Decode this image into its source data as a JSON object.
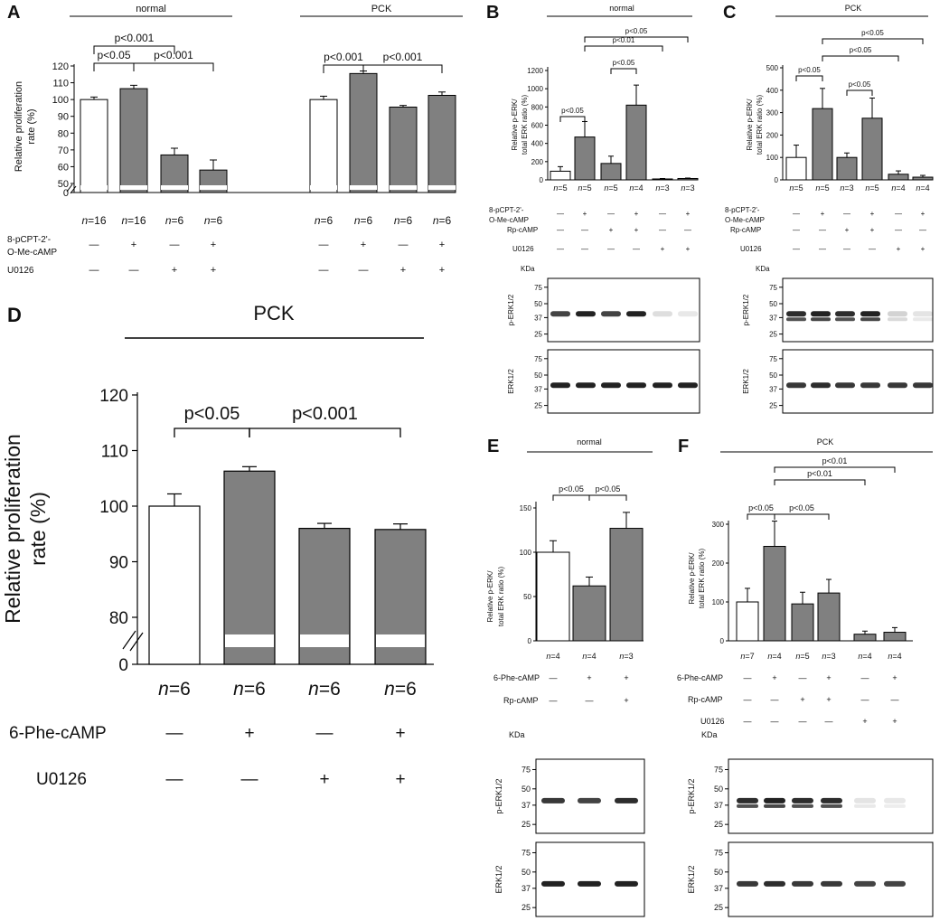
{
  "colors": {
    "white_bar": "#ffffff",
    "gray_bar": "#808080",
    "stroke": "#000000"
  },
  "chart_data": [
    {
      "panel": "A",
      "type": "bar",
      "ylabel": "Relative proliferation rate (%)",
      "ylim": [
        0,
        120
      ],
      "y_axis_break": true,
      "yticks": [
        0,
        50,
        60,
        70,
        80,
        90,
        100,
        110,
        120
      ],
      "groups": [
        {
          "label": "normal",
          "n": [
            "16",
            "16",
            "6",
            "6"
          ],
          "values": [
            100,
            106.5,
            67,
            58
          ],
          "errors": [
            1.5,
            2,
            4,
            6
          ],
          "brackets": [
            {
              "from": 0,
              "to": 1,
              "text": "p<0.05",
              "level": 0
            },
            {
              "from": 1,
              "to": 3,
              "text": "p<0.001",
              "level": 0
            },
            {
              "from": 0,
              "to": 2,
              "text": "p<0.001",
              "level": 1
            }
          ]
        },
        {
          "label": "PCK",
          "n": [
            "6",
            "6",
            "6",
            "6"
          ],
          "values": [
            100,
            115.5,
            95.5,
            102.5
          ],
          "errors": [
            2,
            1.5,
            1,
            2
          ],
          "brackets": [
            {
              "from": 0,
              "to": 1,
              "text": "p<0.001",
              "level": 0
            },
            {
              "from": 1,
              "to": 3,
              "text": "p<0.001",
              "level": 0
            }
          ]
        }
      ],
      "fills": [
        "white",
        "gray",
        "gray",
        "gray"
      ],
      "treatments": [
        {
          "label": "8-pCPT-2'-O-Me-cAMP",
          "signs": [
            "—",
            "+",
            "—",
            "+",
            "—",
            "+",
            "—",
            "+"
          ]
        },
        {
          "label": "U0126",
          "signs": [
            "—",
            "—",
            "+",
            "+",
            "—",
            "—",
            "+",
            "+"
          ]
        }
      ]
    },
    {
      "panel": "B",
      "type": "bar",
      "group_label": "normal",
      "ylabel": "Relative p-ERK/ total ERK ratio (%)",
      "ylim": [
        0,
        1200
      ],
      "yticks": [
        0,
        200,
        400,
        600,
        800,
        1000,
        1200
      ],
      "values": [
        95,
        470,
        180,
        820,
        10,
        15
      ],
      "errors": [
        50,
        170,
        80,
        220,
        5,
        5
      ],
      "fills": [
        "white",
        "gray",
        "gray",
        "gray",
        "gray",
        "gray"
      ],
      "n": [
        "5",
        "5",
        "5",
        "4",
        "3",
        "3"
      ],
      "brackets": [
        {
          "from": 0,
          "to": 1,
          "text": "p<0.05",
          "level": 0
        },
        {
          "from": 2,
          "to": 3,
          "text": "p<0.05",
          "level": 0
        },
        {
          "from": 1,
          "to": 4,
          "text": "p<0.01",
          "level": 1
        },
        {
          "from": 1,
          "to": 5,
          "text": "p<0.05",
          "level": 2
        }
      ],
      "treatments": [
        {
          "label": "8-pCPT-2'- O-Me-cAMP",
          "signs": [
            "—",
            "+",
            "—",
            "+",
            "—",
            "+"
          ]
        },
        {
          "label": "Rp-cAMP",
          "signs": [
            "—",
            "—",
            "+",
            "+",
            "—",
            "—"
          ]
        },
        {
          "label": "U0126",
          "signs": [
            "—",
            "—",
            "—",
            "—",
            "+",
            "+"
          ]
        }
      ],
      "blot": {
        "kda_label": "KDa",
        "markers": [
          "75",
          "50",
          "37",
          "25"
        ],
        "rows": [
          "p-ERK1/2",
          "ERK1/2"
        ]
      }
    },
    {
      "panel": "C",
      "type": "bar",
      "group_label": "PCK",
      "ylabel": "Relative p-ERK/ total ERK ratio (%)",
      "ylim": [
        0,
        500
      ],
      "yticks": [
        0,
        100,
        200,
        300,
        400,
        500
      ],
      "values": [
        100,
        318,
        100,
        275,
        25,
        12
      ],
      "errors": [
        55,
        90,
        20,
        90,
        15,
        8
      ],
      "fills": [
        "white",
        "gray",
        "gray",
        "gray",
        "gray",
        "gray"
      ],
      "n": [
        "5",
        "5",
        "3",
        "5",
        "4",
        "4"
      ],
      "brackets": [
        {
          "from": 0,
          "to": 1,
          "text": "p<0.05",
          "level": 0
        },
        {
          "from": 2,
          "to": 3,
          "text": "p<0.05",
          "level": 0
        },
        {
          "from": 1,
          "to": 4,
          "text": "p<0.05",
          "level": 1
        },
        {
          "from": 1,
          "to": 5,
          "text": "p<0.05",
          "level": 2
        }
      ],
      "treatments": [
        {
          "label": "8-pCPT-2'- O-Me-cAMP",
          "signs": [
            "—",
            "+",
            "—",
            "+",
            "—",
            "+"
          ]
        },
        {
          "label": "Rp-cAMP",
          "signs": [
            "—",
            "—",
            "+",
            "+",
            "—",
            "—"
          ]
        },
        {
          "label": "U0126",
          "signs": [
            "—",
            "—",
            "—",
            "—",
            "+",
            "+"
          ]
        }
      ],
      "blot": {
        "kda_label": "KDa",
        "markers": [
          "75",
          "50",
          "37",
          "25"
        ],
        "rows": [
          "p-ERK1/2",
          "ERK1/2"
        ]
      }
    },
    {
      "panel": "D",
      "type": "bar",
      "group_label": "PCK",
      "ylabel": "Relative proliferation rate (%)",
      "ylim": [
        0,
        120
      ],
      "y_axis_break": true,
      "yticks": [
        0,
        80,
        90,
        100,
        110,
        120
      ],
      "values": [
        100,
        106.3,
        96,
        95.8
      ],
      "errors": [
        2.2,
        0.8,
        0.9,
        1
      ],
      "fills": [
        "white",
        "gray",
        "gray",
        "gray"
      ],
      "n": [
        "6",
        "6",
        "6",
        "6"
      ],
      "brackets": [
        {
          "from": 0,
          "to": 1,
          "text": "p<0.05",
          "level": 0
        },
        {
          "from": 1,
          "to": 3,
          "text": "p<0.001",
          "level": 0
        }
      ],
      "treatments": [
        {
          "label": "6-Phe-cAMP",
          "signs": [
            "—",
            "+",
            "—",
            "+"
          ]
        },
        {
          "label": "U0126",
          "signs": [
            "—",
            "—",
            "+",
            "+"
          ]
        }
      ]
    },
    {
      "panel": "E",
      "type": "bar",
      "group_label": "normal",
      "ylabel": "Relative p-ERK/ total ERK ratio (%)",
      "ylim": [
        0,
        150
      ],
      "yticks": [
        0,
        50,
        100,
        150
      ],
      "values": [
        100,
        62,
        127
      ],
      "errors": [
        13,
        10,
        18
      ],
      "fills": [
        "white",
        "gray",
        "gray"
      ],
      "n": [
        "4",
        "4",
        "3"
      ],
      "brackets": [
        {
          "from": 0,
          "to": 1,
          "text": "p<0.05",
          "level": 0
        },
        {
          "from": 1,
          "to": 2,
          "text": "p<0.05",
          "level": 0
        }
      ],
      "treatments": [
        {
          "label": "6-Phe-cAMP",
          "signs": [
            "—",
            "+",
            "+"
          ]
        },
        {
          "label": "Rp-cAMP",
          "signs": [
            "—",
            "—",
            "+"
          ]
        }
      ],
      "blot": {
        "kda_label": "KDa",
        "markers": [
          "75",
          "50",
          "37",
          "25"
        ],
        "rows": [
          "p-ERK1/2",
          "ERK1/2"
        ]
      }
    },
    {
      "panel": "F",
      "type": "bar",
      "group_label": "PCK",
      "ylabel": "Relative p-ERK/ total ERK ratio (%)",
      "ylim": [
        0,
        300
      ],
      "yticks": [
        0,
        100,
        200,
        300
      ],
      "values": [
        100,
        243,
        95,
        123,
        17,
        22
      ],
      "errors": [
        35,
        65,
        30,
        35,
        8,
        12
      ],
      "fills": [
        "white",
        "gray",
        "gray",
        "gray",
        "gray",
        "gray"
      ],
      "n": [
        "7",
        "4",
        "5",
        "3",
        "4",
        "4"
      ],
      "brackets": [
        {
          "from": 0,
          "to": 1,
          "text": "p<0.05",
          "level": 0
        },
        {
          "from": 1,
          "to": 3,
          "text": "p<0.05",
          "level": 0
        },
        {
          "from": 1,
          "to": 4,
          "text": "p<0.01",
          "level": 1
        },
        {
          "from": 1,
          "to": 5,
          "text": "p<0.01",
          "level": 2
        }
      ],
      "treatments": [
        {
          "label": "6-Phe-cAMP",
          "signs": [
            "—",
            "+",
            "—",
            "+",
            "—",
            "+"
          ]
        },
        {
          "label": "Rp-cAMP",
          "signs": [
            "—",
            "—",
            "+",
            "+",
            "—",
            "—"
          ]
        },
        {
          "label": "U0126",
          "signs": [
            "—",
            "—",
            "—",
            "—",
            "+",
            "+"
          ]
        }
      ],
      "blot": {
        "kda_label": "KDa",
        "markers": [
          "75",
          "50",
          "37",
          "25"
        ],
        "rows": [
          "p-ERK1/2",
          "ERK1/2"
        ]
      }
    }
  ]
}
